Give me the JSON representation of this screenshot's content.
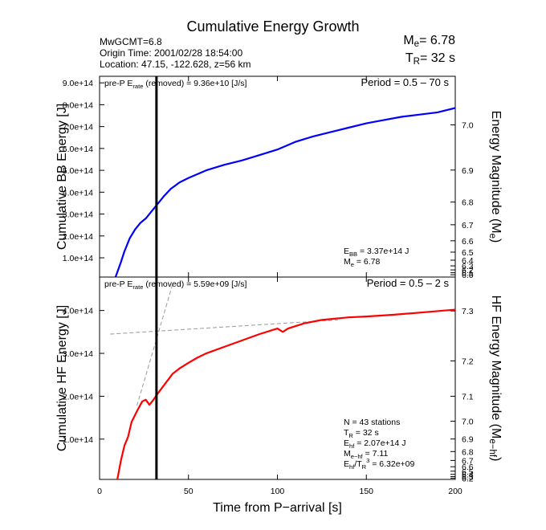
{
  "header": {
    "title": "Cumulative Energy Growth",
    "info": [
      "MwGCMT=6.8",
      "Origin Time: 2001/02/28 18:54:00",
      "Location: 47.15, -122.628, z=56 km"
    ],
    "me": [
      "M",
      "e",
      "= 6.78"
    ],
    "tr": [
      "T",
      "R",
      "= 32 s"
    ]
  },
  "chart_data": [
    {
      "type": "line",
      "ylabel": "Cumulative BB Energy [J]",
      "y2label": [
        "Energy Magnitude (M",
        "e",
        ")"
      ],
      "annotation": [
        "pre-P E",
        "rate",
        " (removed) = 9.36e+10 [J/s]"
      ],
      "period": "Period = 0.5 – 70 s",
      "stats": [
        [
          "E",
          "BB",
          " = 3.37e+14 J"
        ],
        [
          "M",
          "e",
          " = 6.78"
        ]
      ],
      "xlim": [
        0,
        200
      ],
      "ylim": [
        12000000000000.0,
        930000000000000.0
      ],
      "yticks": [
        {
          "value": 100000000000000.0,
          "label": "1.0e+14"
        },
        {
          "value": 200000000000000.0,
          "label": "2.0e+14"
        },
        {
          "value": 300000000000000.0,
          "label": "3.0e+14"
        },
        {
          "value": 400000000000000.0,
          "label": "4.0e+14"
        },
        {
          "value": 500000000000000.0,
          "label": "5.0e+14"
        },
        {
          "value": 600000000000000.0,
          "label": "6.0e+14"
        },
        {
          "value": 700000000000000.0,
          "label": "7.0e+14"
        },
        {
          "value": 800000000000000.0,
          "label": "8.0e+14"
        },
        {
          "value": 900000000000000.0,
          "label": "9.0e+14"
        }
      ],
      "y2ticks": [
        {
          "value": 7,
          "label": "7.0"
        },
        6.9,
        6.8,
        6.7,
        6.6,
        6.5,
        6.4,
        6.3,
        6.2,
        6.1,
        {
          "value": 6,
          "label": "6.0"
        }
      ],
      "vline_x": 32,
      "x": [
        9,
        12,
        14,
        17,
        20,
        23,
        26,
        29,
        32,
        36,
        40,
        45,
        50,
        60,
        70,
        80,
        90,
        100,
        110,
        120,
        130,
        140,
        150,
        160,
        170,
        180,
        190,
        200
      ],
      "series": [
        {
          "color": "#0000ff",
          "values": [
            12000000000000.0,
            80000000000000.0,
            130000000000000.0,
            190000000000000.0,
            230000000000000.0,
            260000000000000.0,
            280000000000000.0,
            310000000000000.0,
            340000000000000.0,
            380000000000000.0,
            415000000000000.0,
            445000000000000.0,
            465000000000000.0,
            500000000000000.0,
            525000000000000.0,
            545000000000000.0,
            570000000000000.0,
            595000000000000.0,
            630000000000000.0,
            655000000000000.0,
            675000000000000.0,
            695000000000000.0,
            715000000000000.0,
            730000000000000.0,
            745000000000000.0,
            755000000000000.0,
            765000000000000.0,
            785000000000000.0
          ]
        }
      ]
    },
    {
      "type": "line",
      "ylabel": "Cumulative HF Energy [J]",
      "y2label": [
        "HF Energy Magnitude (M",
        "e−hf",
        ")"
      ],
      "xlabel": "Time from P−arrival [s]",
      "annotation": [
        "pre-P E",
        "rate",
        " (removed) = 5.59e+09 [J/s]"
      ],
      "period": "Period = 0.5 – 2 s",
      "stats": [
        [
          "N = 43 stations"
        ],
        [
          "T",
          "R",
          " = 32  s"
        ],
        [
          "E",
          "hf",
          " = 2.07e+14 J"
        ],
        [
          "M",
          "e−hf",
          " = 7.11"
        ],
        [
          "E",
          "hf",
          "/T",
          "R",
          "3",
          " =  6.32e+09"
        ]
      ],
      "xlim": [
        0,
        200
      ],
      "ylim": [
        6000000000000.0,
        478000000000000.0
      ],
      "xticks": [
        0,
        50,
        100,
        150,
        200
      ],
      "yticks": [
        {
          "value": 100000000000000.0,
          "label": "1.0e+14"
        },
        {
          "value": 200000000000000.0,
          "label": "2.0e+14"
        },
        {
          "value": 300000000000000.0,
          "label": "3.0e+14"
        },
        {
          "value": 400000000000000.0,
          "label": "4.0e+14"
        }
      ],
      "y2ticks": [
        7.3,
        7.2,
        7.1,
        {
          "value": 7,
          "label": "7.0"
        },
        6.9,
        6.8,
        6.7,
        6.6,
        6.5,
        6.4,
        6.3,
        6.2
      ],
      "vline_x": 32,
      "x": [
        10,
        12,
        14,
        16,
        18,
        21,
        24,
        26,
        28,
        30,
        33,
        37,
        41,
        45,
        50,
        55,
        60,
        70,
        80,
        90,
        100,
        103,
        106,
        115,
        125,
        140,
        150,
        165,
        180,
        200
      ],
      "series": [
        {
          "color": "#ff0000",
          "values": [
            6000000000000.0,
            50000000000000.0,
            85000000000000.0,
            105000000000000.0,
            140000000000000.0,
            165000000000000.0,
            188000000000000.0,
            192000000000000.0,
            180000000000000.0,
            190000000000000.0,
            208000000000000.0,
            230000000000000.0,
            252000000000000.0,
            265000000000000.0,
            278000000000000.0,
            290000000000000.0,
            300000000000000.0,
            315000000000000.0,
            330000000000000.0,
            345000000000000.0,
            358000000000000.0,
            350000000000000.0,
            358000000000000.0,
            370000000000000.0,
            378000000000000.0,
            384000000000000.0,
            386000000000000.0,
            390000000000000.0,
            395000000000000.0,
            402000000000000.0
          ]
        }
      ],
      "reference_lines": [
        {
          "color": "#999999",
          "x": [
            6,
            134
          ],
          "values": [
            345000000000000.0,
            378000000000000.0
          ]
        },
        {
          "color": "#999999",
          "x": [
            21,
            41
          ],
          "values": [
            178000000000000.0,
            460000000000000.0
          ]
        }
      ]
    }
  ]
}
